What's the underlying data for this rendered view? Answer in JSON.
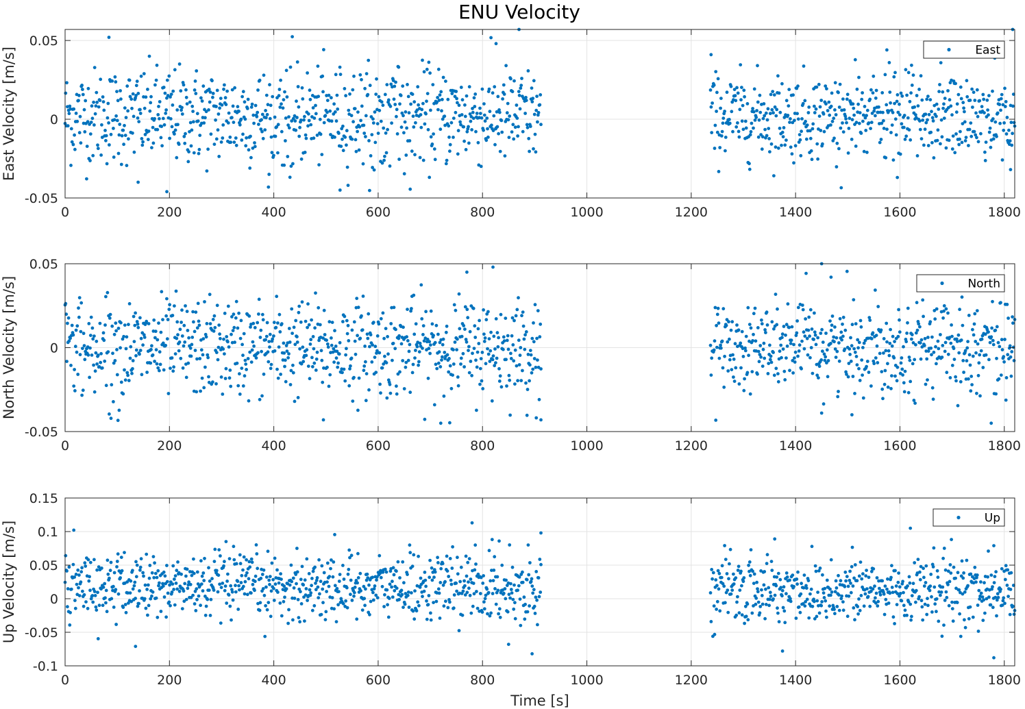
{
  "figure": {
    "title": "ENU Velocity"
  },
  "colors": {
    "series": "#0072bd",
    "grid": "#e3e3e3",
    "axis": "#262626"
  },
  "chart_data": [
    {
      "type": "scatter",
      "ylabel": "East Velocity [m/s]",
      "xlabel": "",
      "xlim": [
        0,
        1820
      ],
      "ylim": [
        -0.05,
        0.057
      ],
      "xticks": [
        0,
        200,
        400,
        600,
        800,
        1000,
        1200,
        1400,
        1600,
        1800
      ],
      "xtick_labels": [
        "0",
        "200",
        "400",
        "600",
        "800",
        "1000",
        "1200",
        "1400",
        "1600",
        "1800"
      ],
      "yticks": [
        -0.05,
        0,
        0.05
      ],
      "ytick_labels": [
        "-0.05",
        "0",
        "0.05"
      ],
      "grid": true,
      "legend": {
        "entry": "East",
        "placement": "top-right"
      },
      "series": [
        {
          "name": "East",
          "segments": [
            {
              "x_range": [
                0,
                912
              ],
              "count": 820,
              "mean": 0.002,
              "std": 0.016,
              "outliers": [
                [
                  84,
                  0.052
                ],
                [
                  870,
                  0.057
                ],
                [
                  826,
                  0.048
                ],
                [
                  195,
                  -0.046
                ],
                [
                  527,
                  -0.045
                ],
                [
                  140,
                  -0.04
                ]
              ]
            },
            {
              "x_range": [
                1237,
                1820
              ],
              "count": 520,
              "mean": 0.002,
              "std": 0.014,
              "outliers": [
                [
                  1816,
                  0.057
                ],
                [
                  1238,
                  0.041
                ],
                [
                  1575,
                  0.044
                ],
                [
                  1595,
                  -0.037
                ],
                [
                  1812,
                  -0.032
                ]
              ]
            }
          ]
        }
      ]
    },
    {
      "type": "scatter",
      "ylabel": "North Velocity [m/s]",
      "xlabel": "",
      "xlim": [
        0,
        1820
      ],
      "ylim": [
        -0.05,
        0.05
      ],
      "xticks": [
        0,
        200,
        400,
        600,
        800,
        1000,
        1200,
        1400,
        1600,
        1800
      ],
      "xtick_labels": [
        "0",
        "200",
        "400",
        "600",
        "800",
        "1000",
        "1200",
        "1400",
        "1600",
        "1800"
      ],
      "yticks": [
        -0.05,
        0,
        0.05
      ],
      "ytick_labels": [
        "-0.05",
        "0",
        "0.05"
      ],
      "grid": true,
      "legend": {
        "entry": "North",
        "placement": "top-right"
      },
      "series": [
        {
          "name": "North",
          "segments": [
            {
              "x_range": [
                0,
                912
              ],
              "count": 820,
              "mean": 0.0,
              "std": 0.015,
              "outliers": [
                [
                  820,
                  0.048
                ],
                [
                  770,
                  0.045
                ],
                [
                  720,
                  -0.045
                ],
                [
                  495,
                  -0.043
                ],
                [
                  912,
                  -0.043
                ]
              ]
            },
            {
              "x_range": [
                1237,
                1820
              ],
              "count": 520,
              "mean": 0.001,
              "std": 0.014,
              "outliers": [
                [
                  1450,
                  0.05
                ],
                [
                  1468,
                  0.042
                ],
                [
                  1775,
                  -0.045
                ],
                [
                  1450,
                  -0.039
                ],
                [
                  1508,
                  -0.04
                ]
              ]
            }
          ]
        }
      ]
    },
    {
      "type": "scatter",
      "ylabel": "Up Velocity [m/s]",
      "xlabel": "Time [s]",
      "xlim": [
        0,
        1820
      ],
      "ylim": [
        -0.1,
        0.15
      ],
      "xticks": [
        0,
        200,
        400,
        600,
        800,
        1000,
        1200,
        1400,
        1600,
        1800
      ],
      "xtick_labels": [
        "0",
        "200",
        "400",
        "600",
        "800",
        "1000",
        "1200",
        "1400",
        "1600",
        "1800"
      ],
      "yticks": [
        -0.1,
        -0.05,
        0,
        0.05,
        0.1,
        0.15
      ],
      "ytick_labels": [
        "-0.1",
        "-0.05",
        "0",
        "0.05",
        "0.1",
        "0.15"
      ],
      "grid": true,
      "legend": {
        "entry": "Up",
        "placement": "top-right"
      },
      "series": [
        {
          "name": "Up",
          "segments": [
            {
              "x_range": [
                0,
                912
              ],
              "count": 820,
              "mean": 0.018,
              "std": 0.026,
              "outliers": [
                [
                  780,
                  0.113
                ],
                [
                  912,
                  0.098
                ],
                [
                  135,
                  -0.071
                ],
                [
                  895,
                  -0.082
                ],
                [
                  850,
                  -0.068
                ]
              ]
            },
            {
              "x_range": [
                1237,
                1820
              ],
              "count": 520,
              "mean": 0.012,
              "std": 0.027,
              "outliers": [
                [
                  1620,
                  0.105
                ],
                [
                  1375,
                  -0.078
                ],
                [
                  1780,
                  -0.088
                ],
                [
                  1360,
                  0.089
                ],
                [
                  1780,
                  0.079
                ]
              ]
            }
          ]
        }
      ]
    }
  ]
}
